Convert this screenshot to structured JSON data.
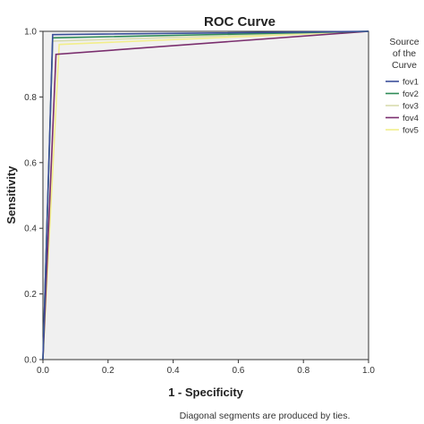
{
  "chart_data": {
    "type": "line",
    "title": "ROC Curve",
    "xlabel": "1 - Specificity",
    "ylabel": "Sensitivity",
    "xlim": [
      0.0,
      1.0
    ],
    "ylim": [
      0.0,
      1.0
    ],
    "x_ticks": [
      "0.0",
      "0.2",
      "0.4",
      "0.6",
      "0.8",
      "1.0"
    ],
    "y_ticks": [
      "0.0",
      "0.2",
      "0.4",
      "0.6",
      "0.8",
      "1.0"
    ],
    "grid": false,
    "legend_title": "Source of the Curve",
    "legend_title_lines": [
      "Source",
      "of the",
      "Curve"
    ],
    "legend_placement": "right",
    "footnote": "Diagonal segments are produced by ties.",
    "plot_background": "#f0f0f0",
    "series": [
      {
        "name": "fov1",
        "color": "#3b4f9a",
        "points": [
          [
            0,
            0
          ],
          [
            0.03,
            0.99
          ],
          [
            1,
            1
          ]
        ]
      },
      {
        "name": "fov2",
        "color": "#2e8b57",
        "points": [
          [
            0,
            0
          ],
          [
            0.03,
            0.98
          ],
          [
            1,
            1
          ]
        ]
      },
      {
        "name": "fov3",
        "color": "#d8dcae",
        "points": [
          [
            0,
            0
          ],
          [
            0.03,
            0.97
          ],
          [
            1,
            1
          ]
        ]
      },
      {
        "name": "fov4",
        "color": "#7a2e6e",
        "points": [
          [
            0,
            0
          ],
          [
            0.04,
            0.93
          ],
          [
            1,
            1
          ]
        ]
      },
      {
        "name": "fov5",
        "color": "#f2ee8a",
        "points": [
          [
            0,
            0
          ],
          [
            0.05,
            0.96
          ],
          [
            1,
            1
          ]
        ]
      }
    ]
  }
}
